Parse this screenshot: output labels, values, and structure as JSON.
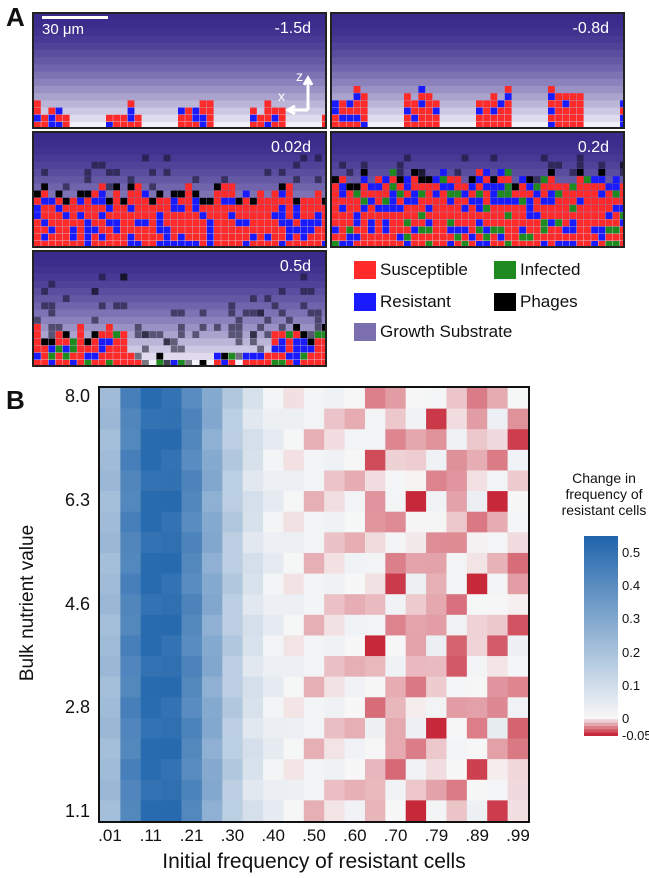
{
  "panel_a": {
    "letter": "A",
    "scale_label": "30 μm",
    "axis_x": "x",
    "axis_z": "z",
    "frames": [
      {
        "time": "-1.5d"
      },
      {
        "time": "-0.8d"
      },
      {
        "time": "0.02d"
      },
      {
        "time": "0.2d"
      },
      {
        "time": "0.5d"
      }
    ],
    "legend": [
      {
        "label": "Susceptible",
        "color": "#ff2a2a"
      },
      {
        "label": "Infected",
        "color": "#1f8a1f"
      },
      {
        "label": "Resistant",
        "color": "#1a1aff"
      },
      {
        "label": "Phages",
        "color": "#000000"
      },
      {
        "label": "Growth Substrate",
        "color": "#7b6fb0"
      }
    ],
    "colors": {
      "substrate_top": "#3a2a8c",
      "substrate_bottom": "#f2f0f8"
    }
  },
  "chart_data": {
    "type": "heatmap",
    "letter": "B",
    "title": "",
    "xlabel": "Initial frequency of resistant cells",
    "ylabel": "Bulk nutrient value",
    "x_tick_labels": [
      ".01",
      ".11",
      ".21",
      ".30",
      ".40",
      ".50",
      ".60",
      ".70",
      ".79",
      ".89",
      ".99"
    ],
    "y_tick_labels": [
      "8.0",
      "6.3",
      "4.6",
      "2.8",
      "1.1"
    ],
    "x_range": [
      0.01,
      0.99
    ],
    "y_range": [
      1.1,
      8.0
    ],
    "n_cols": 21,
    "n_rows": 21,
    "colorbar": {
      "title": "Change in frequency of resistant cells",
      "ticks": [
        "0.5",
        "0.4",
        "0.3",
        "0.2",
        "0.1",
        "0",
        "-0.05"
      ],
      "range": [
        -0.05,
        0.55
      ],
      "colors": {
        "high": "#2166ac",
        "mid": "#f7f7f7",
        "low": "#c7283a"
      }
    }
  }
}
